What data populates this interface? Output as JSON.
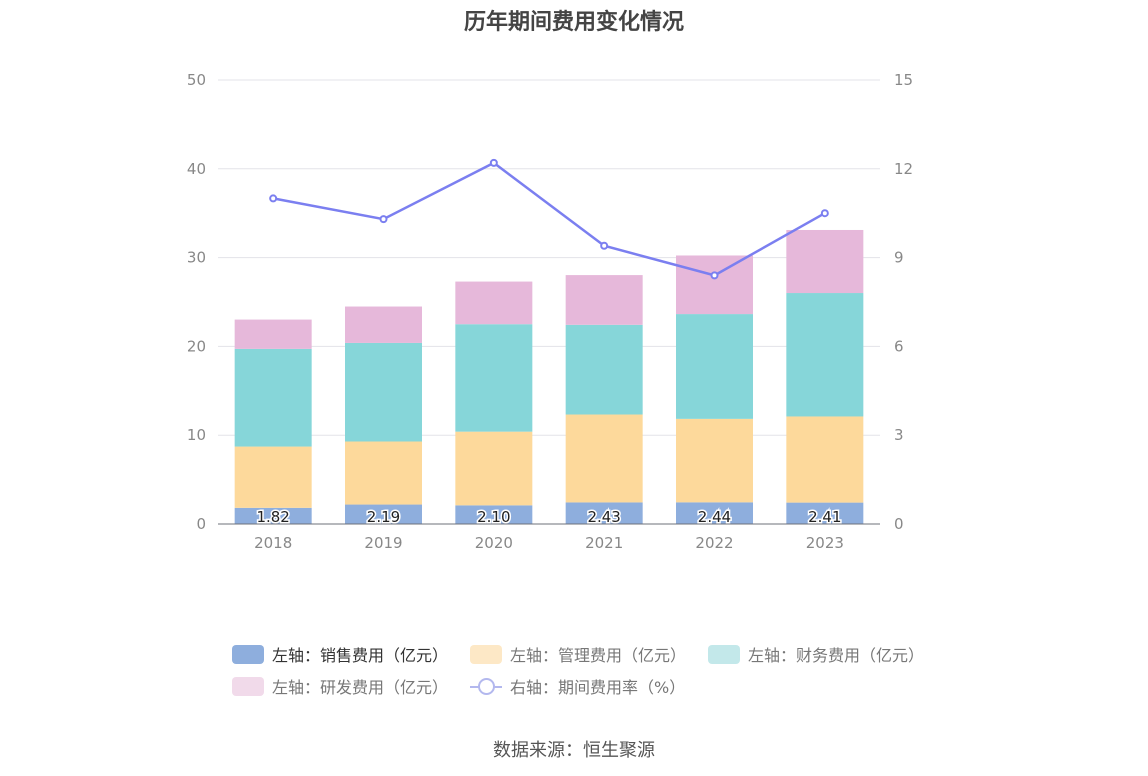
{
  "chart_data": {
    "type": "bar",
    "stacked": true,
    "title": "历年期间费用变化情况",
    "categories": [
      "2018",
      "2019",
      "2020",
      "2021",
      "2022",
      "2023"
    ],
    "series": [
      {
        "name": "左轴：销售费用（亿元）",
        "axis": "left",
        "color": "#8eaedd",
        "values": [
          1.82,
          2.19,
          2.1,
          2.43,
          2.44,
          2.41
        ],
        "labels": [
          "1.82",
          "2.19",
          "2.10",
          "2.43",
          "2.44",
          "2.41"
        ]
      },
      {
        "name": "左轴：管理费用（亿元）",
        "axis": "left",
        "color": "#fdd99b",
        "values": [
          6.9,
          7.1,
          8.3,
          9.9,
          9.4,
          9.7
        ]
      },
      {
        "name": "左轴：财务费用（亿元）",
        "axis": "left",
        "color": "#86d6d9",
        "values": [
          11.0,
          11.1,
          12.1,
          10.1,
          11.8,
          13.9
        ]
      },
      {
        "name": "左轴：研发费用（亿元）",
        "axis": "left",
        "color": "#e6b8da",
        "values": [
          3.3,
          4.1,
          4.8,
          5.6,
          6.6,
          7.1
        ]
      },
      {
        "name": "右轴：期间费用率（%）",
        "axis": "right",
        "type": "line",
        "color": "#7b7ff0",
        "values": [
          11.0,
          10.3,
          12.2,
          9.4,
          8.4,
          10.5
        ]
      }
    ],
    "yLeft": {
      "min": 0,
      "max": 50,
      "ticks": [
        0,
        10,
        20,
        30,
        40,
        50
      ]
    },
    "yRight": {
      "min": 0,
      "max": 15,
      "ticks": [
        0,
        3,
        6,
        9,
        12,
        15
      ]
    },
    "legend_position": "bottom"
  },
  "legend": {
    "items": [
      {
        "label": "左轴：销售费用（亿元）",
        "color": "#8eaedd",
        "faded": false
      },
      {
        "label": "左轴：管理费用（亿元）",
        "color": "#fde8c6",
        "faded": true
      },
      {
        "label": "左轴：财务费用（亿元）",
        "color": "#c3e8ea",
        "faded": true
      },
      {
        "label": "左轴：研发费用（亿元）",
        "color": "#f1daea",
        "faded": true
      },
      {
        "label": "右轴：期间费用率（%）",
        "color": "#b3b8ee",
        "faded": true
      }
    ]
  },
  "source": "数据来源：恒生聚源"
}
